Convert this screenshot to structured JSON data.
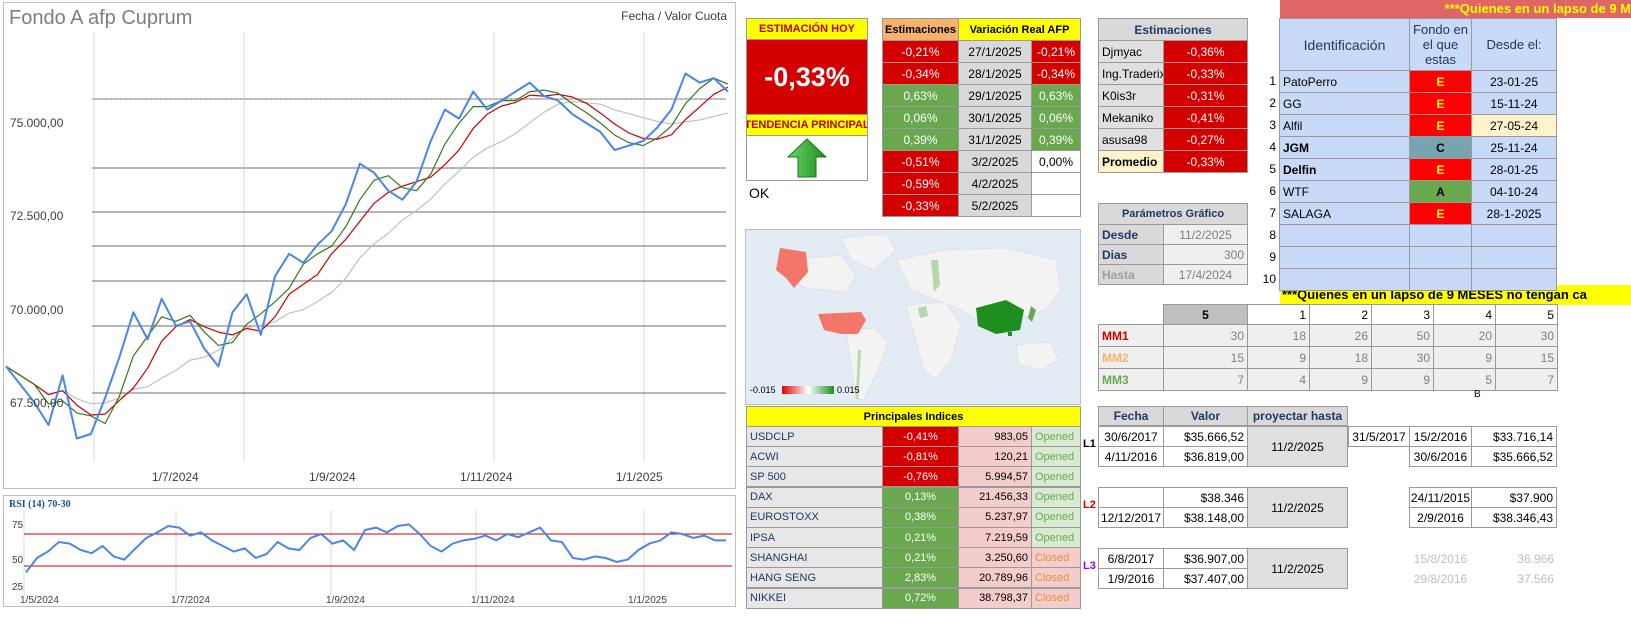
{
  "chart": {
    "title": "Fondo A afp Cuprum",
    "legend": "Fecha / Valor Cuota",
    "yticks": [
      "75.000,00",
      "72.500,00",
      "70.000,00",
      "67.500,00"
    ],
    "xticks": [
      "1/7/2024",
      "1/9/2024",
      "1/11/2024",
      "1/1/2025"
    ]
  },
  "rsi": {
    "title": "RSI (14) 70-30",
    "yticks": [
      "75",
      "50",
      "25"
    ],
    "xticks": [
      "1/5/2024",
      "1/7/2024",
      "1/9/2024",
      "1/11/2024",
      "1/1/2025"
    ]
  },
  "chart_data": [
    {
      "type": "line",
      "title": "Fondo A afp Cuprum",
      "xlabel": "",
      "ylabel": "",
      "x_ticks": [
        "1/7/2024",
        "1/9/2024",
        "1/11/2024",
        "1/1/2025"
      ],
      "ylim": [
        67500,
        77000
      ],
      "series": [
        {
          "name": "Fecha / Valor Cuota",
          "color": "#4a86e8",
          "values": [
            69600,
            69200,
            68800,
            68300,
            69400,
            68000,
            68100,
            68900,
            69800,
            70800,
            70200,
            71100,
            70500,
            70600,
            70000,
            69600,
            70800,
            71200,
            70300,
            71600,
            72100,
            71900,
            72300,
            72600,
            73200,
            74100,
            73900,
            73500,
            73300,
            73700,
            74600,
            75300,
            75100,
            75700,
            75300,
            75500,
            75700,
            75900,
            75600,
            75500,
            75200,
            75000,
            74800,
            74400,
            74500,
            74600,
            74900,
            75300,
            76100,
            75900,
            76000,
            75700
          ]
        },
        {
          "name": "MM1",
          "color": "#cc0000",
          "values": []
        },
        {
          "name": "MM2",
          "color": "#f6b26b",
          "values": []
        },
        {
          "name": "MM3",
          "color": "#38761d",
          "values": []
        }
      ]
    },
    {
      "type": "line",
      "title": "RSI (14) 70-30",
      "ylim": [
        0,
        100
      ],
      "series": [
        {
          "name": "RSI",
          "color": "#4a86e8",
          "values": [
            22,
            40,
            48,
            60,
            58,
            50,
            46,
            55,
            42,
            38,
            52,
            65,
            72,
            80,
            78,
            68,
            72,
            62,
            55,
            48,
            52,
            40,
            45,
            60,
            52,
            50,
            65,
            70,
            58,
            62,
            50,
            75,
            78,
            72,
            80,
            82,
            70,
            55,
            48,
            58,
            62,
            64,
            68,
            62,
            70,
            66,
            72,
            78,
            62,
            60,
            40,
            38,
            42,
            40,
            35,
            38,
            50,
            58,
            62,
            72,
            70,
            65,
            68,
            62,
            62
          ]
        }
      ]
    }
  ],
  "estimacion_hoy": {
    "header": "ESTIMACIÓN HOY",
    "value": "-0,33%",
    "tendencia_label": "TENDENCIA PRINCIPAL",
    "ok": "OK"
  },
  "estimaciones_table": {
    "headers": [
      "Estimaciones",
      "Variación Real AFP"
    ],
    "rows": [
      {
        "est": "-0,21%",
        "fecha": "27/1/2025",
        "real": "-0,21%",
        "c": "red"
      },
      {
        "est": "-0,34%",
        "fecha": "28/1/2025",
        "real": "-0,34%",
        "c": "red"
      },
      {
        "est": "0,63%",
        "fecha": "29/1/2025",
        "real": "0,63%",
        "c": "green"
      },
      {
        "est": "0,06%",
        "fecha": "30/1/2025",
        "real": "0,06%",
        "c": "green"
      },
      {
        "est": "0,39%",
        "fecha": "31/1/2025",
        "real": "0,39%",
        "c": "green"
      },
      {
        "est": "-0,51%",
        "fecha": "3/2/2025",
        "real": "0,00%",
        "c": "red"
      },
      {
        "est": "-0,59%",
        "fecha": "4/2/2025",
        "real": "",
        "c": "red"
      },
      {
        "est": "-0,33%",
        "fecha": "5/2/2025",
        "real": "",
        "c": "red"
      }
    ]
  },
  "usuarios_table": {
    "header": "Estimaciones",
    "rows": [
      {
        "name": "Djmyac",
        "val": "-0,36%"
      },
      {
        "name": "Ing.Traderix",
        "val": "-0,33%"
      },
      {
        "name": "K0is3r",
        "val": "-0,31%"
      },
      {
        "name": "Mekaniko",
        "val": "-0,41%"
      },
      {
        "name": "asusa98",
        "val": "-0,27%"
      },
      {
        "name": "Promedio",
        "val": "-0,33%"
      }
    ]
  },
  "parametros": {
    "header": "Parámetros Gráfico",
    "desde_label": "Desde",
    "desde": "11/2/2025",
    "dias_label": "Dias",
    "dias": "300",
    "hasta_label": "Hasta",
    "hasta": "17/4/2024"
  },
  "map": {
    "min": "-0.015",
    "max": "0.015"
  },
  "banner_top": "***Quienes en un lapso de 9 M",
  "banner_mid": "***Quienes en un lapso de 9 MESES no tengan ca",
  "identificacion": {
    "headers": [
      "Identificación",
      "Fondo en el que estas",
      "Desde el:"
    ],
    "rows": [
      {
        "n": "1",
        "name": "PatoPerro",
        "fondo": "E",
        "desde": "23-01-25",
        "fc": "red",
        "bold": false,
        "dc": "blue"
      },
      {
        "n": "2",
        "name": "GG",
        "fondo": "E",
        "desde": "15-11-24",
        "fc": "red",
        "bold": false,
        "dc": "blue"
      },
      {
        "n": "3",
        "name": "Alfil",
        "fondo": "E",
        "desde": "27-05-24",
        "fc": "red",
        "bold": false,
        "dc": "cream"
      },
      {
        "n": "4",
        "name": "JGM",
        "fondo": "C",
        "desde": "25-11-24",
        "fc": "teal",
        "bold": true,
        "dc": "blue"
      },
      {
        "n": "5",
        "name": "Delfin",
        "fondo": "E",
        "desde": "28-01-25",
        "fc": "red",
        "bold": true,
        "dc": "blue"
      },
      {
        "n": "6",
        "name": "WTF",
        "fondo": "A",
        "desde": "04-10-24",
        "fc": "green",
        "bold": false,
        "dc": "blue"
      },
      {
        "n": "7",
        "name": "SALAGA",
        "fondo": "E",
        "desde": "28-1-2025",
        "fc": "red",
        "bold": false,
        "dc": "blue"
      },
      {
        "n": "8",
        "name": "",
        "fondo": "",
        "desde": "",
        "fc": "blue",
        "bold": false,
        "dc": "blue"
      },
      {
        "n": "9",
        "name": "",
        "fondo": "",
        "desde": "",
        "fc": "blue",
        "bold": false,
        "dc": "blue"
      },
      {
        "n": "10",
        "name": "",
        "fondo": "",
        "desde": "",
        "fc": "blue",
        "bold": false,
        "dc": "blue"
      }
    ]
  },
  "mm_table": {
    "header_sel": "5",
    "col_headers": [
      "1",
      "2",
      "3",
      "4",
      "5"
    ],
    "rows": [
      {
        "label": "MM1",
        "sel": "30",
        "vals": [
          "18",
          "26",
          "50",
          "20",
          "30"
        ],
        "color": "#cc0000"
      },
      {
        "label": "MM2",
        "sel": "15",
        "vals": [
          "9",
          "18",
          "30",
          "9",
          "15"
        ],
        "color": "#f6b26b"
      },
      {
        "label": "MM3",
        "sel": "7",
        "vals": [
          "4",
          "9",
          "9",
          "5",
          "7"
        ],
        "color": "#6aa84f"
      }
    ],
    "b_label": "B"
  },
  "indices": {
    "header": "Principales Indices",
    "rows": [
      {
        "name": "USDCLP",
        "pct": "-0,41%",
        "val": "983,05",
        "state": "Opened",
        "c": "red"
      },
      {
        "name": "ACWI",
        "pct": "-0,81%",
        "val": "120,21",
        "state": "Opened",
        "c": "red"
      },
      {
        "name": "SP 500",
        "pct": "-0,76%",
        "val": "5.994,57",
        "state": "Opened",
        "c": "red"
      },
      {
        "name": "DAX",
        "pct": "0,13%",
        "val": "21.456,33",
        "state": "Opened",
        "c": "green"
      },
      {
        "name": "EUROSTOXX",
        "pct": "0,38%",
        "val": "5.237,97",
        "state": "Opened",
        "c": "green"
      },
      {
        "name": "IPSA",
        "pct": "0,21%",
        "val": "7.219,59",
        "state": "Opened",
        "c": "green"
      },
      {
        "name": "SHANGHAI",
        "pct": "0,21%",
        "val": "3.250,60",
        "state": "Closed",
        "c": "green"
      },
      {
        "name": "HANG SENG",
        "pct": "2,83%",
        "val": "20.789,96",
        "state": "Closed",
        "c": "green"
      },
      {
        "name": "NIKKEI",
        "pct": "0,72%",
        "val": "38.798,37",
        "state": "Closed",
        "c": "green"
      }
    ]
  },
  "proyeccion": {
    "headers": [
      "Fecha",
      "Valor",
      "proyectar hasta"
    ],
    "groups": [
      {
        "label": "L1",
        "rows": [
          [
            "30/6/2017",
            "$35.666,52"
          ],
          [
            "4/11/2016",
            "$36.819,00"
          ]
        ],
        "hasta": "11/2/2025",
        "extra": [
          [
            "31/5/2017",
            "15/2/2016",
            "$33.716,14"
          ],
          [
            "",
            "30/6/2016",
            "$35.666,52"
          ]
        ],
        "lc": "#000"
      },
      {
        "label": "L2",
        "rows": [
          [
            "",
            "$38.346"
          ],
          [
            "12/12/2017",
            "$38.148,00"
          ]
        ],
        "hasta": "11/2/2025",
        "extra": [
          [
            "",
            "24/11/2015",
            "$37.900"
          ],
          [
            "",
            "2/9/2016",
            "$38.346,43"
          ]
        ],
        "lc": "#cc0000"
      },
      {
        "label": "L3",
        "rows": [
          [
            "6/8/2017",
            "$36.907,00"
          ],
          [
            "1/9/2016",
            "$37.407,00"
          ]
        ],
        "hasta": "11/2/2025",
        "extra": [
          [
            "",
            "15/8/2016",
            "36.966"
          ],
          [
            "",
            "29/8/2016",
            "37.566"
          ]
        ],
        "lc": "#9900ff"
      }
    ]
  }
}
